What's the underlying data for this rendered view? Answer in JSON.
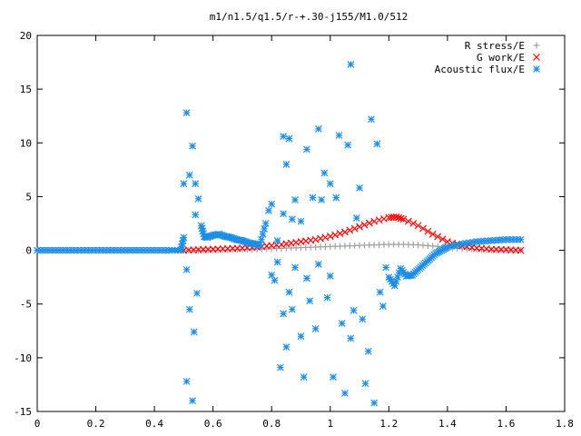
{
  "chart_data": {
    "type": "scatter",
    "title": "m1/n1.5/q1.5/r-+.30-j155/M1.0/512",
    "xlim": [
      0,
      1.8
    ],
    "ylim": [
      -15,
      20
    ],
    "xticks": [
      0,
      0.2,
      0.4,
      0.6,
      0.8,
      1,
      1.2,
      1.4,
      1.6,
      1.8
    ],
    "yticks": [
      -15,
      -10,
      -5,
      0,
      5,
      10,
      15,
      20
    ],
    "grid": false,
    "legend_position": "top-right",
    "series": [
      {
        "name": "R stress/E",
        "marker": "plus",
        "color": "#a0a0a0",
        "points": [
          [
            0.5,
            0.0
          ],
          [
            0.55,
            0.0
          ],
          [
            0.6,
            0.02
          ],
          [
            0.65,
            0.05
          ],
          [
            0.7,
            0.08
          ],
          [
            0.75,
            0.1
          ],
          [
            0.8,
            0.15
          ],
          [
            0.85,
            0.2
          ],
          [
            0.9,
            0.25
          ],
          [
            0.95,
            0.3
          ],
          [
            1.0,
            0.35
          ],
          [
            1.05,
            0.4
          ],
          [
            1.1,
            0.45
          ],
          [
            1.15,
            0.5
          ],
          [
            1.2,
            0.55
          ],
          [
            1.25,
            0.55
          ],
          [
            1.3,
            0.5
          ],
          [
            1.35,
            0.4
          ],
          [
            1.4,
            0.25
          ],
          [
            1.45,
            0.15
          ],
          [
            1.5,
            0.08
          ],
          [
            1.55,
            0.03
          ],
          [
            1.6,
            0.02
          ],
          [
            1.65,
            0.0
          ]
        ]
      },
      {
        "name": "G work/E",
        "marker": "cross",
        "color": "#ff0000",
        "points": [
          [
            0.5,
            0.0
          ],
          [
            0.55,
            0.05
          ],
          [
            0.6,
            0.1
          ],
          [
            0.65,
            0.15
          ],
          [
            0.7,
            0.2
          ],
          [
            0.75,
            0.3
          ],
          [
            0.8,
            0.45
          ],
          [
            0.85,
            0.6
          ],
          [
            0.9,
            0.8
          ],
          [
            0.95,
            1.0
          ],
          [
            1.0,
            1.3
          ],
          [
            1.05,
            1.7
          ],
          [
            1.1,
            2.2
          ],
          [
            1.15,
            2.7
          ],
          [
            1.2,
            3.05
          ],
          [
            1.225,
            3.1
          ],
          [
            1.25,
            2.9
          ],
          [
            1.3,
            2.3
          ],
          [
            1.35,
            1.5
          ],
          [
            1.4,
            0.8
          ],
          [
            1.45,
            0.4
          ],
          [
            1.5,
            0.2
          ],
          [
            1.55,
            0.1
          ],
          [
            1.6,
            0.05
          ],
          [
            1.65,
            0.0
          ]
        ]
      },
      {
        "name": "Acoustic flux/E",
        "marker": "star",
        "color": "#1e8ee6",
        "points": [
          [
            0.0,
            0
          ],
          [
            0.05,
            0
          ],
          [
            0.1,
            0
          ],
          [
            0.15,
            0
          ],
          [
            0.2,
            0
          ],
          [
            0.25,
            0
          ],
          [
            0.3,
            0
          ],
          [
            0.35,
            0
          ],
          [
            0.4,
            0
          ],
          [
            0.45,
            0
          ],
          [
            0.49,
            0
          ],
          [
            0.5,
            1.2
          ],
          [
            0.5,
            6.2
          ],
          [
            0.51,
            12.8
          ],
          [
            0.51,
            -1.8
          ],
          [
            0.51,
            -12.2
          ],
          [
            0.52,
            7.0
          ],
          [
            0.52,
            -5.5
          ],
          [
            0.53,
            9.7
          ],
          [
            0.53,
            -14.0
          ],
          [
            0.535,
            -7.6
          ],
          [
            0.54,
            6.2
          ],
          [
            0.54,
            3.3
          ],
          [
            0.545,
            -4.0
          ],
          [
            0.55,
            4.8
          ],
          [
            0.56,
            2.3
          ],
          [
            0.57,
            1.3
          ],
          [
            0.58,
            1.2
          ],
          [
            0.6,
            1.4
          ],
          [
            0.62,
            1.5
          ],
          [
            0.64,
            1.3
          ],
          [
            0.66,
            1.2
          ],
          [
            0.68,
            1.0
          ],
          [
            0.7,
            0.9
          ],
          [
            0.72,
            0.7
          ],
          [
            0.74,
            0.6
          ],
          [
            0.76,
            0.5
          ],
          [
            0.78,
            2.5
          ],
          [
            0.79,
            3.7
          ],
          [
            0.8,
            4.3
          ],
          [
            0.8,
            -2.3
          ],
          [
            0.81,
            -2.8
          ],
          [
            0.82,
            0.9
          ],
          [
            0.82,
            -1.1
          ],
          [
            0.83,
            -10.9
          ],
          [
            0.84,
            10.6
          ],
          [
            0.84,
            3.4
          ],
          [
            0.84,
            -5.9
          ],
          [
            0.85,
            8.0
          ],
          [
            0.85,
            -9.0
          ],
          [
            0.86,
            10.4
          ],
          [
            0.86,
            -3.9
          ],
          [
            0.87,
            2.9
          ],
          [
            0.87,
            -5.5
          ],
          [
            0.88,
            4.7
          ],
          [
            0.88,
            -1.6
          ],
          [
            0.9,
            2.7
          ],
          [
            0.9,
            -8.0
          ],
          [
            0.91,
            -11.8
          ],
          [
            0.92,
            9.4
          ],
          [
            0.92,
            -2.6
          ],
          [
            0.93,
            -4.7
          ],
          [
            0.94,
            4.9
          ],
          [
            0.95,
            -7.3
          ],
          [
            0.96,
            11.3
          ],
          [
            0.96,
            -1.3
          ],
          [
            0.97,
            4.7
          ],
          [
            0.98,
            7.2
          ],
          [
            0.99,
            -4.4
          ],
          [
            1.0,
            6.2
          ],
          [
            1.0,
            -2.4
          ],
          [
            1.01,
            -11.8
          ],
          [
            1.02,
            4.9
          ],
          [
            1.03,
            10.7
          ],
          [
            1.04,
            -6.8
          ],
          [
            1.05,
            -13.3
          ],
          [
            1.06,
            9.8
          ],
          [
            1.07,
            17.3
          ],
          [
            1.07,
            -8.2
          ],
          [
            1.08,
            -5.6
          ],
          [
            1.09,
            3.0
          ],
          [
            1.1,
            5.8
          ],
          [
            1.11,
            -6.4
          ],
          [
            1.12,
            -12.4
          ],
          [
            1.13,
            -9.4
          ],
          [
            1.14,
            12.2
          ],
          [
            1.15,
            -14.2
          ],
          [
            1.16,
            9.9
          ],
          [
            1.17,
            -3.9
          ],
          [
            1.18,
            -5.2
          ],
          [
            1.19,
            -1.6
          ],
          [
            1.2,
            -2.5
          ],
          [
            1.22,
            -3.3
          ],
          [
            1.24,
            -1.7
          ],
          [
            1.26,
            -2.4
          ],
          [
            1.28,
            -2.3
          ],
          [
            1.3,
            -1.8
          ],
          [
            1.32,
            -1.3
          ],
          [
            1.34,
            -0.8
          ],
          [
            1.36,
            -0.3
          ],
          [
            1.38,
            0.0
          ],
          [
            1.4,
            0.3
          ],
          [
            1.45,
            0.6
          ],
          [
            1.5,
            0.8
          ],
          [
            1.55,
            0.9
          ],
          [
            1.6,
            1.0
          ],
          [
            1.65,
            1.0
          ]
        ]
      }
    ]
  }
}
